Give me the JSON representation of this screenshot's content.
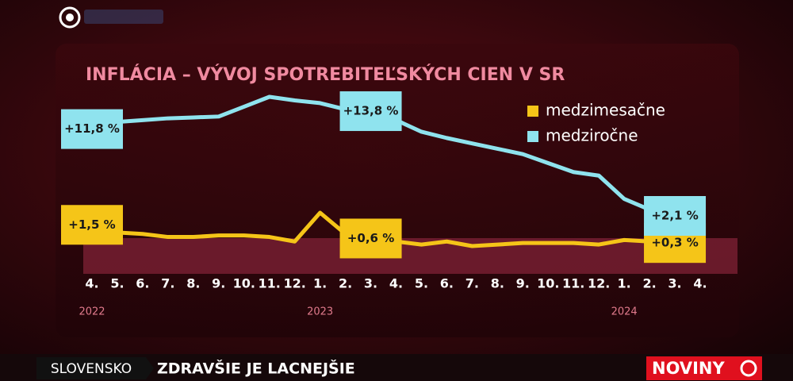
{
  "chart_data": {
    "type": "line",
    "title": "INFLÁCIA – VÝVOJ SPOTREBITEĽSKÝCH CIEN V SR",
    "categories": [
      "4.",
      "5.",
      "6.",
      "7.",
      "8.",
      "9.",
      "10.",
      "11.",
      "12.",
      "1.",
      "2.",
      "3.",
      "4.",
      "5.",
      "6.",
      "7.",
      "8.",
      "9.",
      "10.",
      "11.",
      "12.",
      "1.",
      "2.",
      "3.",
      "4."
    ],
    "year_labels": [
      "2022",
      null,
      null,
      null,
      null,
      null,
      null,
      null,
      null,
      "2023",
      null,
      null,
      null,
      null,
      null,
      null,
      null,
      null,
      null,
      null,
      null,
      "2024",
      null,
      null,
      null
    ],
    "series": [
      {
        "name": "medzimesačne",
        "color": "#f5c518",
        "values": [
          1.5,
          1.0,
          0.9,
          0.7,
          0.7,
          0.8,
          0.8,
          0.7,
          0.4,
          2.3,
          0.9,
          0.6,
          0.4,
          0.2,
          0.4,
          0.1,
          0.2,
          0.3,
          0.3,
          0.3,
          0.2,
          0.5,
          0.4,
          0.3,
          null
        ],
        "value_labels": [
          "+1,5 %",
          null,
          null,
          null,
          null,
          null,
          null,
          null,
          null,
          null,
          null,
          "+0,6 %",
          null,
          null,
          null,
          null,
          null,
          null,
          null,
          null,
          null,
          null,
          null,
          "+0,3 %",
          null
        ]
      },
      {
        "name": "medziročne",
        "color": "#8fe3ee",
        "values": [
          11.8,
          12.6,
          12.8,
          13.0,
          13.1,
          13.2,
          14.3,
          15.4,
          15.0,
          14.7,
          14.0,
          13.8,
          12.8,
          11.5,
          10.8,
          10.2,
          9.6,
          9.0,
          8.0,
          7.0,
          6.6,
          4.0,
          2.8,
          2.1,
          null
        ],
        "value_labels": [
          "+11,8 %",
          null,
          null,
          null,
          null,
          null,
          null,
          null,
          null,
          null,
          null,
          "+13,8 %",
          null,
          null,
          null,
          null,
          null,
          null,
          null,
          null,
          null,
          null,
          null,
          "+2,1 %",
          null
        ]
      }
    ]
  },
  "ticker": {
    "section": "SLOVENSKO",
    "headline": "ZDRAVŠIE JE LACNEJŠIE",
    "logo": "NOVINY"
  }
}
